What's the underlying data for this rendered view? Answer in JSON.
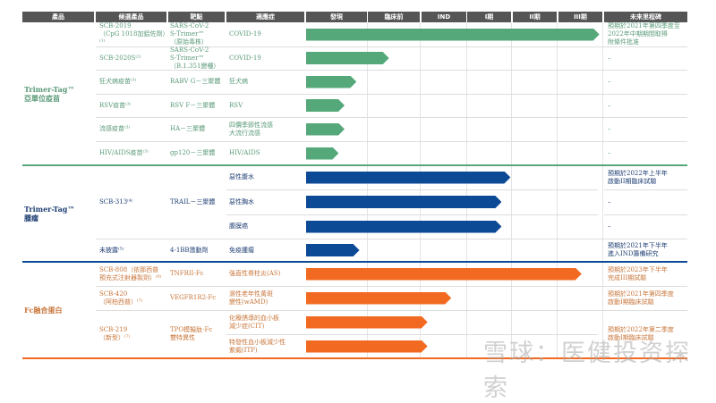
{
  "headers": [
    "產品",
    "候選產品",
    "靶點",
    "適應症",
    "發現",
    "臨床前",
    "IND",
    "I期",
    "II期",
    "III期",
    "未來里程碑"
  ],
  "colors": {
    "header": "#555555",
    "green": "#55a87a",
    "blue": "#0d4a96",
    "orange": "#f26a21",
    "green_text": "#5a9a78",
    "blue_text": "#1f3f74",
    "orange_text": "#c8763a"
  },
  "groups": [
    {
      "name": "Trimer-Tag™\n亞單位疫苗",
      "color": "green",
      "rows": [
        {
          "candidate": "SCB-2019\n（CpG 1018加鋁佐劑）⁽¹⁾",
          "target": "SARS-CoV-2\nS-Trimer™\n（原始毒株）",
          "indication": "COVID-19",
          "progress": 0.99,
          "milestone": "預期於2021年第四季度至\n2022年中期期間取得\n附條件批准"
        },
        {
          "candidate": "SCB-2020S⁽²⁾",
          "target": "SARS-CoV-2\nS-Trimer™\n（B.1.351變種）",
          "indication": "COVID-19",
          "progress": 0.28,
          "milestone": "–"
        },
        {
          "candidate": "狂犬病疫苗⁽³⁾",
          "target": "RABV G－三聚體",
          "indication": "狂犬病",
          "progress": 0.17,
          "milestone": "–"
        },
        {
          "candidate": "RSV疫苗⁽³⁾",
          "target": "RSV F－三聚體",
          "indication": "RSV",
          "progress": 0.13,
          "milestone": "–"
        },
        {
          "candidate": "流感疫苗⁽³⁾",
          "target": "HA－三聚體",
          "indication": "四價季節性流感\n大流行流感",
          "progress": 0.13,
          "milestone": "–"
        },
        {
          "candidate": "HIV/AIDS疫苗⁽³⁾",
          "target": "gp120－三聚體",
          "indication": "HIV/AIDS",
          "progress": 0.11,
          "milestone": "–"
        }
      ]
    },
    {
      "name": "Trimer-Tag™\n腫瘤",
      "color": "blue",
      "rows": [
        {
          "candidate": "SCB-313⁽⁴⁾",
          "target": "TRAIL－三聚體",
          "indication": "惡性腹水",
          "progress": 0.69,
          "milestone": "預期於2022年上半年\n啟動II期臨床試驗"
        },
        {
          "candidate": "",
          "target": "",
          "indication": "惡性胸水",
          "progress": 0.66,
          "milestone": "–"
        },
        {
          "candidate": "",
          "target": "",
          "indication": "腹膜癌",
          "progress": 0.66,
          "milestone": "–"
        },
        {
          "candidate": "未披露⁽⁵⁾",
          "target": "4-1BB激動劑",
          "indication": "免疫腫瘤",
          "progress": 0.18,
          "milestone": "預期於2021年下半年\n進入IND籌備研究"
        }
      ]
    },
    {
      "name": "Fc融合蛋白",
      "color": "orange",
      "rows": [
        {
          "candidate": "SCB-808（依那西普\n預充式注射器製劑）⁽⁶⁾",
          "target": "TNFRII-Fc",
          "indication": "強直性脊柱炎(AS)",
          "progress": 0.93,
          "milestone": "預期於2023年下半年\n完成III期試驗"
        },
        {
          "candidate": "SCB-420\n（阿柏西普）⁽⁷⁾",
          "target": "VEGFR1R2-Fc",
          "indication": "濕性老年性黃斑\n變性(wAMD)",
          "progress": 0.49,
          "milestone": "預期於2021年第四季度\n啟動I期臨床試驗"
        },
        {
          "candidate": "SCB-219\n（新型）⁽⁷⁾",
          "target": "TPO模擬肽-Fc\n雙特異性",
          "indication": "化療誘導的血小板\n減少症(CIT)",
          "progress": 0.41,
          "milestone": "預期於2022年第二季度\n啟動I期臨床試驗"
        },
        {
          "candidate": "",
          "target": "",
          "indication": "特發性血小板減少性\n紫癜(ITP)",
          "progress": 0.41,
          "milestone": ""
        }
      ]
    }
  ],
  "watermark": "雪球：医健投资探索"
}
